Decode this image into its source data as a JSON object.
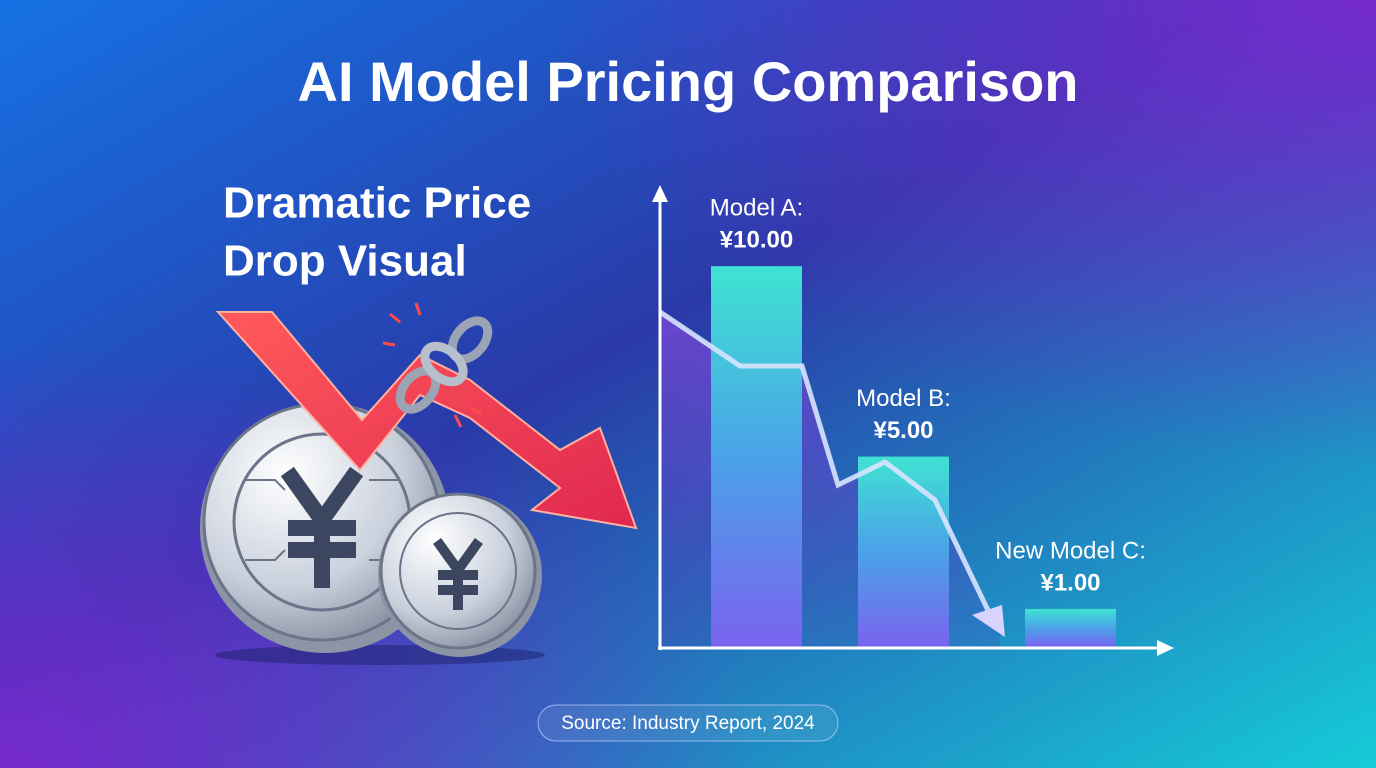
{
  "chart_data": {
    "type": "bar",
    "title": "AI Model Pricing Comparison",
    "subtitle": [
      "Dramatic Price",
      "Drop Visual"
    ],
    "categories": [
      "Model A:",
      "Model B:",
      "New Model C:"
    ],
    "values": [
      10,
      5,
      1
    ],
    "value_labels": [
      "¥10.00",
      "¥5.00",
      "¥1.00"
    ],
    "ylim": [
      0,
      12
    ],
    "source": "Source: Industry Report, 2024"
  }
}
